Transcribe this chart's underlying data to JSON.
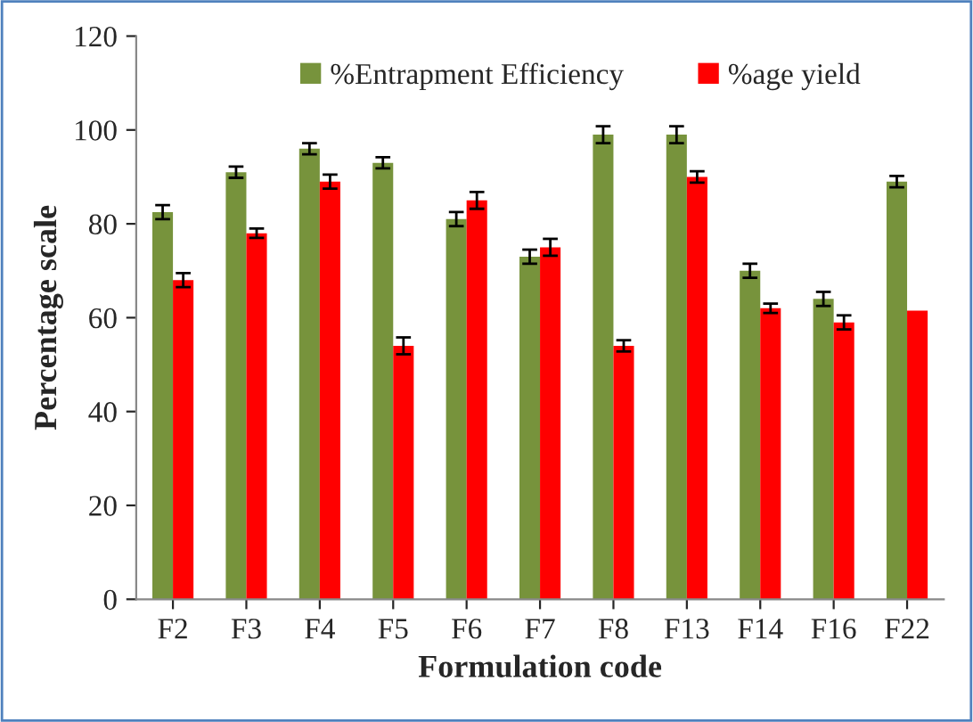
{
  "chart_data": {
    "type": "bar",
    "xlabel": "Formulation code",
    "ylabel": "Percentage scale",
    "categories": [
      "F2",
      "F3",
      "F4",
      "F5",
      "F6",
      "F7",
      "F8",
      "F13",
      "F14",
      "F16",
      "F22"
    ],
    "series": [
      {
        "name": "%Entrapment Efficiency",
        "color": "#77933c",
        "values": [
          82.5,
          91,
          96,
          93,
          81,
          73,
          99,
          99,
          70,
          64,
          89
        ],
        "errors": [
          1.5,
          1.2,
          1.2,
          1.2,
          1.5,
          1.5,
          1.8,
          1.8,
          1.5,
          1.5,
          1.2
        ]
      },
      {
        "name": "%age yield",
        "color": "#ff0000",
        "values": [
          68,
          78,
          89,
          54,
          85,
          75,
          54,
          90,
          62,
          59,
          61.5
        ],
        "errors": [
          1.5,
          1.0,
          1.5,
          1.8,
          1.8,
          1.8,
          1.2,
          1.2,
          1.0,
          1.5,
          null
        ]
      }
    ],
    "ylim": [
      0,
      120
    ],
    "yticks": [
      0,
      20,
      40,
      60,
      80,
      100,
      120
    ],
    "grid": false,
    "legend": "top"
  }
}
